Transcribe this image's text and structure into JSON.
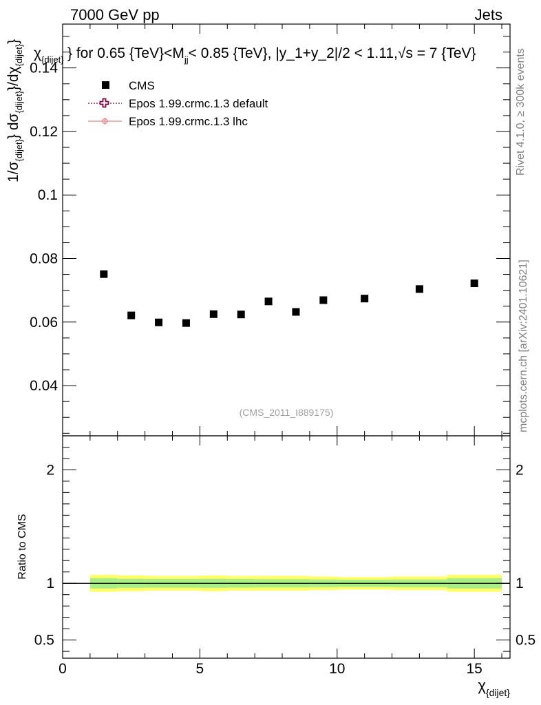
{
  "header": {
    "energy_label": "7000 GeV pp",
    "category_label": "Jets"
  },
  "side_text": {
    "rivet": "Rivet 4.1.0, ≥ 300k events",
    "mcplots": "mcplots.cern.ch [arXiv:2401.10621]"
  },
  "chart_data": [
    {
      "type": "scatter",
      "title": "χ_{dijet} for 0.65 {TeV}<M_{jj}< 0.85 {TeV}, |y_1+y_2|/2 < 1.11,√s = 7 {TeV}",
      "title_parts": {
        "chi": "χ",
        "chi_sub": "{dijet}",
        "text1": "} for 0.65 {TeV}<M",
        "m_sub": "jj",
        "text2": "< 0.85 {TeV}, |y_1+y_2|/2 < 1.11,",
        "sqrt": "√",
        "text3": "s = 7 {TeV}"
      },
      "ylabel": "1/σ_{dijet} dσ_{dijet}/dχ_{dijet}",
      "ylabel_parts": {
        "p1": "1/σ",
        "s1": "{dijet}",
        "p2": "} dσ",
        "s2": "{dijet}",
        "p3": "}/dχ",
        "s3": "{dijet}",
        "p4": "}"
      },
      "xlim": [
        0,
        16.3
      ],
      "ylim": [
        0.0242,
        0.1538
      ],
      "yticks": [
        0.04,
        0.06,
        0.08,
        0.1,
        0.12,
        0.14
      ],
      "ytick_labels": [
        "0.04",
        "0.06",
        "0.08",
        "0.1",
        "0.12",
        "0.14"
      ],
      "legend": [
        {
          "label": "CMS",
          "marker": "square",
          "color": "#000000"
        },
        {
          "label": "Epos 1.99.crmc.1.3 default",
          "marker": "cross",
          "color": "#800040"
        },
        {
          "label": "Epos 1.99.crmc.1.3 lhc",
          "marker": "circle-line",
          "color": "#f08080"
        }
      ],
      "series": [
        {
          "name": "CMS",
          "x": [
            1.5,
            2.5,
            3.5,
            4.5,
            5.5,
            6.5,
            7.5,
            8.5,
            9.5,
            11.0,
            13.0,
            15.0
          ],
          "y": [
            0.0751,
            0.0621,
            0.0599,
            0.0597,
            0.0625,
            0.0624,
            0.0665,
            0.0632,
            0.0669,
            0.0674,
            0.0704,
            0.0722
          ]
        }
      ],
      "watermark": "(CMS_2011_I889175)"
    },
    {
      "type": "line",
      "ylabel": "Ratio to CMS",
      "xlabel": "χ_{dijet}",
      "xlabel_parts": {
        "chi": "χ",
        "sub": "{dijet}"
      },
      "xlim": [
        0,
        16.3
      ],
      "ylim": [
        0.34,
        2.3
      ],
      "yticks": [
        0.5,
        1,
        2
      ],
      "ytick_labels": [
        "0.5",
        "1",
        "2"
      ],
      "xticks": [
        0,
        5,
        10,
        15
      ],
      "xtick_labels": [
        "0",
        "5",
        "10",
        "15"
      ],
      "bin_edges": [
        1,
        2,
        3,
        4,
        5,
        6,
        7,
        8,
        9,
        10,
        12,
        14,
        16
      ],
      "band_outer": [
        0.075,
        0.07,
        0.065,
        0.065,
        0.07,
        0.065,
        0.065,
        0.065,
        0.06,
        0.055,
        0.06,
        0.075
      ],
      "band_inner": [
        0.045,
        0.04,
        0.038,
        0.038,
        0.04,
        0.038,
        0.036,
        0.036,
        0.034,
        0.032,
        0.034,
        0.045
      ],
      "band_colors": {
        "outer": "#ffff66",
        "inner": "#aaee88"
      },
      "ratio_line": 1
    }
  ]
}
